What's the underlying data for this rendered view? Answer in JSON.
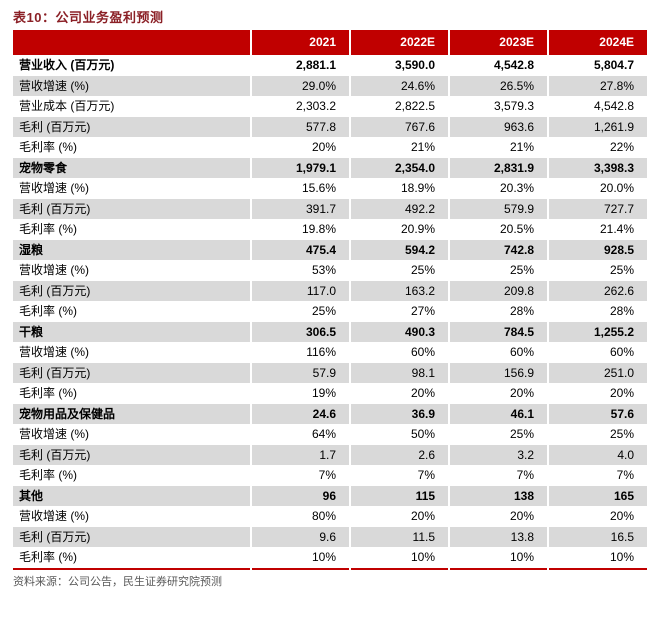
{
  "title": "表10：公司业务盈利预测",
  "source": "资料来源：公司公告，民生证券研究院预测",
  "colors": {
    "header_bg": "#C00000",
    "title_text": "#8B2026",
    "alt_row_bg": "#D9D9D9",
    "source_text": "#595959",
    "bottom_border": "#C00000"
  },
  "table": {
    "columns": [
      "",
      "2021",
      "2022E",
      "2023E",
      "2024E"
    ],
    "rows": [
      {
        "label": "营业收入 (百万元)",
        "bold": true,
        "values": [
          "2,881.1",
          "3,590.0",
          "4,542.8",
          "5,804.7"
        ]
      },
      {
        "label": "营收增速 (%)",
        "bold": false,
        "values": [
          "29.0%",
          "24.6%",
          "26.5%",
          "27.8%"
        ]
      },
      {
        "label": "营业成本 (百万元)",
        "bold": false,
        "values": [
          "2,303.2",
          "2,822.5",
          "3,579.3",
          "4,542.8"
        ]
      },
      {
        "label": "毛利 (百万元)",
        "bold": false,
        "values": [
          "577.8",
          "767.6",
          "963.6",
          "1,261.9"
        ]
      },
      {
        "label": "毛利率 (%)",
        "bold": false,
        "values": [
          "20%",
          "21%",
          "21%",
          "22%"
        ]
      },
      {
        "label": "宠物零食",
        "bold": true,
        "values": [
          "1,979.1",
          "2,354.0",
          "2,831.9",
          "3,398.3"
        ]
      },
      {
        "label": "营收增速 (%)",
        "bold": false,
        "values": [
          "15.6%",
          "18.9%",
          "20.3%",
          "20.0%"
        ]
      },
      {
        "label": "毛利 (百万元)",
        "bold": false,
        "values": [
          "391.7",
          "492.2",
          "579.9",
          "727.7"
        ]
      },
      {
        "label": "毛利率 (%)",
        "bold": false,
        "values": [
          "19.8%",
          "20.9%",
          "20.5%",
          "21.4%"
        ]
      },
      {
        "label": "湿粮",
        "bold": true,
        "values": [
          "475.4",
          "594.2",
          "742.8",
          "928.5"
        ]
      },
      {
        "label": "营收增速 (%)",
        "bold": false,
        "values": [
          "53%",
          "25%",
          "25%",
          "25%"
        ]
      },
      {
        "label": "毛利 (百万元)",
        "bold": false,
        "values": [
          "117.0",
          "163.2",
          "209.8",
          "262.6"
        ]
      },
      {
        "label": "毛利率 (%)",
        "bold": false,
        "values": [
          "25%",
          "27%",
          "28%",
          "28%"
        ]
      },
      {
        "label": "干粮",
        "bold": true,
        "values": [
          "306.5",
          "490.3",
          "784.5",
          "1,255.2"
        ]
      },
      {
        "label": "营收增速 (%)",
        "bold": false,
        "values": [
          "116%",
          "60%",
          "60%",
          "60%"
        ]
      },
      {
        "label": "毛利 (百万元)",
        "bold": false,
        "values": [
          "57.9",
          "98.1",
          "156.9",
          "251.0"
        ]
      },
      {
        "label": "毛利率 (%)",
        "bold": false,
        "values": [
          "19%",
          "20%",
          "20%",
          "20%"
        ]
      },
      {
        "label": "宠物用品及保健品",
        "bold": true,
        "values": [
          "24.6",
          "36.9",
          "46.1",
          "57.6"
        ]
      },
      {
        "label": "营收增速 (%)",
        "bold": false,
        "values": [
          "64%",
          "50%",
          "25%",
          "25%"
        ]
      },
      {
        "label": "毛利 (百万元)",
        "bold": false,
        "values": [
          "1.7",
          "2.6",
          "3.2",
          "4.0"
        ]
      },
      {
        "label": "毛利率 (%)",
        "bold": false,
        "values": [
          "7%",
          "7%",
          "7%",
          "7%"
        ]
      },
      {
        "label": "其他",
        "bold": true,
        "values": [
          "96",
          "115",
          "138",
          "165"
        ]
      },
      {
        "label": "营收增速 (%)",
        "bold": false,
        "values": [
          "80%",
          "20%",
          "20%",
          "20%"
        ]
      },
      {
        "label": "毛利 (百万元)",
        "bold": false,
        "values": [
          "9.6",
          "11.5",
          "13.8",
          "16.5"
        ]
      },
      {
        "label": "毛利率 (%)",
        "bold": false,
        "values": [
          "10%",
          "10%",
          "10%",
          "10%"
        ]
      }
    ]
  }
}
